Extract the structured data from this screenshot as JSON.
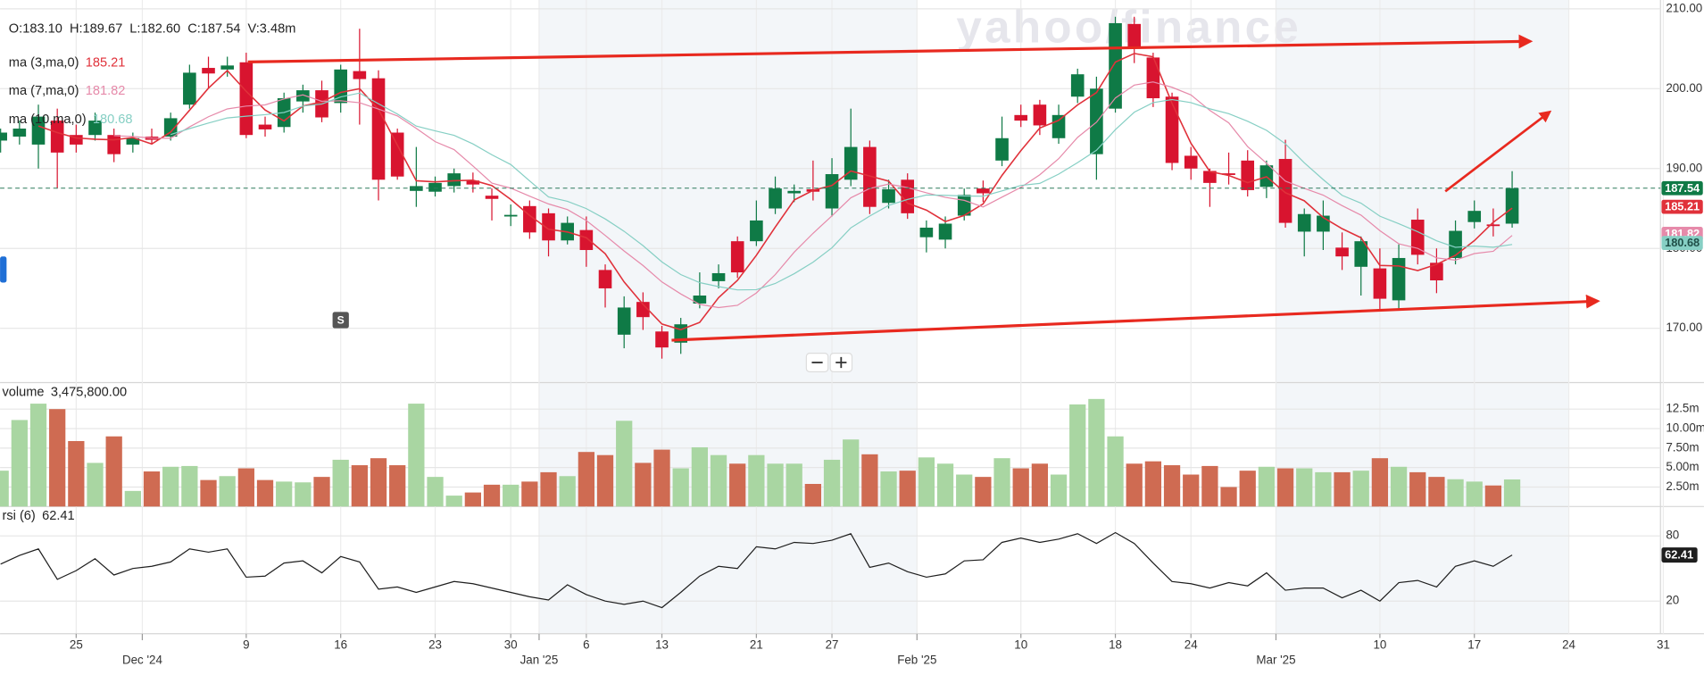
{
  "chart_data": [
    {
      "type": "candlestick",
      "legend_text": "O:183.10  H:189.67  L:182.60  C:187.54  V:3.48m",
      "watermark": "yahoo/finance",
      "badge": "S",
      "categories": [
        null,
        null,
        null,
        null,
        "25",
        null,
        null,
        null,
        null,
        null,
        null,
        null,
        null,
        "9",
        null,
        null,
        null,
        null,
        "16",
        null,
        null,
        null,
        null,
        "23",
        null,
        null,
        null,
        "30",
        null,
        null,
        null,
        "6",
        null,
        null,
        null,
        "13",
        null,
        null,
        null,
        null,
        "21",
        null,
        null,
        null,
        "27",
        null,
        null,
        null,
        null,
        null,
        null,
        null,
        null,
        null,
        "10",
        null,
        null,
        null,
        null,
        "18",
        null,
        null,
        null,
        "24",
        null,
        null,
        null,
        null,
        null,
        null,
        null,
        null,
        null,
        "10",
        null,
        null,
        null,
        null,
        "17",
        null,
        null
      ],
      "months": [
        null,
        null,
        null,
        null,
        null,
        null,
        null,
        null,
        "Dec '24",
        null,
        null,
        null,
        null,
        null,
        null,
        null,
        null,
        null,
        null,
        null,
        null,
        null,
        null,
        null,
        null,
        null,
        null,
        null,
        null,
        "Jan '25",
        null,
        null,
        null,
        null,
        null,
        null,
        null,
        null,
        null,
        null,
        null,
        null,
        null,
        null,
        null,
        null,
        null,
        null,
        null,
        "Feb '25",
        null,
        null,
        null,
        null,
        null,
        null,
        null,
        null,
        null,
        null,
        null,
        null,
        null,
        null,
        null,
        null,
        null,
        null,
        "Mar '25",
        null,
        null,
        null,
        null,
        null,
        null,
        null,
        null,
        null,
        null,
        null,
        null
      ],
      "future_categories": [
        "24",
        "31"
      ],
      "open": [
        193.5,
        194,
        193,
        196,
        194.2,
        194.2,
        194.2,
        193,
        194,
        194,
        198,
        202.6,
        202.4,
        203.3,
        195.5,
        195.2,
        198.4,
        199.8,
        198.2,
        202.2,
        201.3,
        194.5,
        187.2,
        187.1,
        187.8,
        188.5,
        186.6,
        184,
        185.3,
        184.4,
        181,
        182.3,
        177.3,
        169.2,
        173.3,
        169.6,
        168.2,
        173.1,
        175.9,
        180.9,
        180.9,
        185,
        186.9,
        187.4,
        185,
        188.6,
        192.7,
        185.7,
        188.6,
        181.4,
        181.1,
        184.1,
        187.5,
        191,
        196.7,
        198,
        193.8,
        199,
        191.8,
        197.5,
        208.1,
        203.9,
        199,
        191.6,
        189.7,
        189.4,
        191,
        187.7,
        191.2,
        182.1,
        182.1,
        180.1,
        177.7,
        177.5,
        173.5,
        183.6,
        178.2,
        178.8,
        183.3,
        183,
        183.1
      ],
      "high": [
        195,
        196,
        198,
        197.5,
        195.5,
        197,
        195,
        194.5,
        195,
        197,
        203,
        204,
        204,
        204.5,
        196.5,
        199.5,
        200.5,
        201,
        203,
        207.5,
        202.3,
        195,
        192.7,
        189,
        190,
        189.5,
        187.5,
        185.5,
        186,
        185,
        184,
        184,
        178,
        174,
        174.5,
        170.3,
        171.3,
        177,
        178,
        181.5,
        186,
        189,
        188,
        191,
        191.3,
        197.5,
        193.5,
        188.6,
        189.4,
        183.5,
        184,
        187.5,
        188.5,
        196.5,
        198,
        198.6,
        198,
        202.5,
        201.5,
        209,
        209,
        204.5,
        199.5,
        192.7,
        190,
        192,
        192.3,
        191,
        193.6,
        185,
        186,
        182,
        181.5,
        180,
        180.5,
        185,
        180,
        183.5,
        186,
        185,
        189.67
      ],
      "low": [
        192,
        193,
        190,
        187.5,
        192,
        193.5,
        190.8,
        192,
        193,
        193.5,
        197.5,
        200,
        201.5,
        193.8,
        194,
        194.5,
        197,
        195.8,
        197,
        195.5,
        186,
        188.6,
        185.2,
        186.5,
        187,
        187,
        183.5,
        182.8,
        181.2,
        179,
        180.5,
        177.7,
        172.6,
        167.5,
        169.8,
        166.2,
        166.8,
        172.5,
        175,
        176.3,
        180.3,
        184.3,
        185.8,
        186,
        184,
        187.8,
        184.3,
        185,
        183.7,
        179.5,
        180,
        183.5,
        185.8,
        190.3,
        195.2,
        194.2,
        193.1,
        198.2,
        188.6,
        197,
        203.2,
        197.7,
        189.8,
        188.6,
        185.2,
        188,
        186.5,
        186.3,
        182.6,
        179,
        179.8,
        177.3,
        174.1,
        172.3,
        172.2,
        178,
        174.4,
        178,
        182.5,
        181.5,
        182.6
      ],
      "close": [
        194.5,
        195,
        196.5,
        192,
        193,
        196,
        191.8,
        193.8,
        193.6,
        196.3,
        202,
        201.9,
        202.9,
        194.2,
        194.9,
        198.8,
        199.8,
        196.4,
        202.4,
        201.2,
        188.6,
        189,
        187.8,
        188.2,
        189.4,
        188,
        186.2,
        184.2,
        182,
        181,
        183.2,
        179.8,
        175,
        172.6,
        171.4,
        167.6,
        170.5,
        174.1,
        176.9,
        177,
        183.5,
        187.5,
        187.2,
        187.1,
        189.3,
        192.7,
        185.2,
        187.4,
        184.4,
        182.6,
        183.1,
        186.7,
        186.9,
        193.8,
        196,
        195.4,
        196.7,
        201.8,
        200,
        208.2,
        205,
        198.8,
        190.7,
        190,
        188.2,
        189.2,
        187.3,
        190.4,
        183.2,
        184.3,
        184.1,
        179,
        180.9,
        173.7,
        178.8,
        179.2,
        176,
        182.2,
        184.7,
        182.9,
        187.54
      ],
      "up_color": "#0f7a46",
      "down_color": "#d8142f",
      "moving_averages": [
        {
          "name": "ma (3,ma,0)",
          "period": 3,
          "value": 185.21,
          "color": "#e0313a"
        },
        {
          "name": "ma (7,ma,0)",
          "period": 7,
          "value": 181.82,
          "color": "#e68aaa"
        },
        {
          "name": "ma (10,ma,0)",
          "period": 10,
          "value": 180.68,
          "color": "#86cfc4"
        }
      ],
      "ylim": [
        163.2,
        211.1
      ],
      "yticks": [
        {
          "value": 170,
          "label": "170.00"
        },
        {
          "value": 180,
          "label": "180.00"
        },
        {
          "value": 190,
          "label": "190.00"
        },
        {
          "value": 200,
          "label": "200.00"
        },
        {
          "value": 210,
          "label": "210.00"
        }
      ],
      "grid": true
    },
    {
      "type": "bar",
      "label": "volume",
      "current_label": "3,475,800.00",
      "values": [
        4.6,
        11.1,
        13.2,
        12.5,
        8.4,
        5.6,
        9,
        2,
        4.5,
        5.1,
        5.2,
        3.4,
        3.9,
        4.9,
        3.4,
        3.2,
        3.1,
        3.8,
        6,
        5.3,
        6.2,
        5.3,
        13.2,
        3.8,
        1.4,
        1.8,
        2.8,
        2.8,
        3.2,
        4.4,
        3.9,
        7,
        6.6,
        11,
        5.6,
        7.3,
        4.9,
        7.6,
        6.6,
        5.5,
        6.6,
        5.5,
        5.5,
        2.9,
        6,
        8.6,
        6.7,
        4.5,
        4.6,
        6.3,
        5.5,
        4.1,
        3.8,
        6.2,
        4.9,
        5.5,
        4.1,
        13.1,
        13.8,
        9,
        5.5,
        5.8,
        5.3,
        4.1,
        5.2,
        2.5,
        4.6,
        5.1,
        4.9,
        4.9,
        4.4,
        4.4,
        4.6,
        6.2,
        5.1,
        4.4,
        3.8,
        3.5,
        3.2,
        2.7,
        3.4758
      ],
      "up_color": "#a9d6a2",
      "down_color": "#cf6b52",
      "ylim": [
        0,
        15.9
      ],
      "yticks": [
        {
          "value": 2.5,
          "label": "2.50m"
        },
        {
          "value": 5,
          "label": "5.00m"
        },
        {
          "value": 7.5,
          "label": "7.50m"
        },
        {
          "value": 10,
          "label": "10.00m"
        },
        {
          "value": 12.5,
          "label": "12.5m"
        }
      ],
      "grid": true
    },
    {
      "type": "line",
      "label": "rsi (6)",
      "values": [
        54,
        62,
        68,
        40,
        48,
        59,
        44,
        50,
        52,
        56,
        68,
        65,
        68,
        42,
        43,
        55,
        57,
        46,
        61,
        56,
        31,
        33,
        28,
        33,
        38,
        36,
        32,
        28,
        24,
        21,
        35,
        26,
        20,
        17,
        20,
        14,
        28,
        43,
        52,
        50,
        70,
        68,
        74,
        73,
        76,
        82,
        51,
        55,
        47,
        42,
        45,
        57,
        58,
        74,
        78,
        74,
        77,
        82,
        73,
        83,
        73,
        55,
        38,
        36,
        32,
        37,
        34,
        46,
        30,
        32,
        32,
        23,
        30,
        20,
        37,
        39,
        33,
        52,
        57,
        52,
        62.41
      ],
      "color": "#1e1e1e",
      "ylim": [
        -10,
        107
      ],
      "yticks": [
        20,
        80
      ],
      "grid": true
    }
  ]
}
